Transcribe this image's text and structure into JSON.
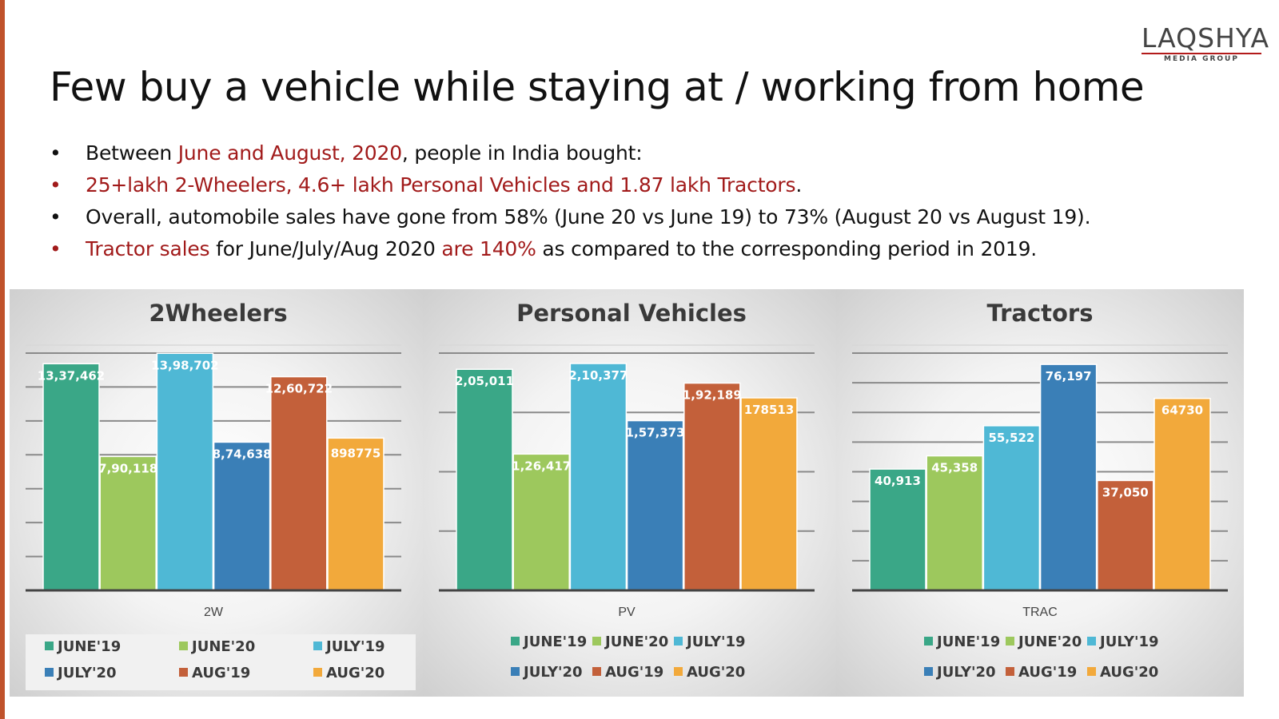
{
  "logo": {
    "name": "LAQSHYA",
    "tagline": "MEDIA GROUP"
  },
  "title": "Few buy a vehicle while staying at / working from home",
  "bullets": [
    {
      "parts": [
        {
          "text": "Between ",
          "color": "black"
        },
        {
          "text": "June and August, 2020",
          "color": "red"
        },
        {
          "text": ", people in India bought:",
          "color": "black"
        }
      ],
      "bullet_color": "black"
    },
    {
      "parts": [
        {
          "text": "25+lakh 2-Wheelers, 4.6+ lakh Personal Vehicles and 1.87 lakh Tractors",
          "color": "red"
        },
        {
          "text": ".",
          "color": "black"
        }
      ],
      "bullet_color": "red"
    },
    {
      "parts": [
        {
          "text": "Overall, automobile sales have gone from 58% (June 20 vs June 19) to 73% (August 20 vs August 19).",
          "color": "black"
        }
      ],
      "bullet_color": "black"
    },
    {
      "parts": [
        {
          "text": "Tractor sales",
          "color": "red"
        },
        {
          "text": " for June/July/Aug 2020 ",
          "color": "black"
        },
        {
          "text": "are 140%",
          "color": "red"
        },
        {
          "text": " as compared to the corresponding period in 2019.",
          "color": "black"
        }
      ],
      "bullet_color": "red"
    }
  ],
  "colors": {
    "red": "#a11a1a",
    "black": "#111111"
  },
  "chart_data": [
    {
      "type": "bar",
      "title": "2Wheelers",
      "categories": [
        "2W"
      ],
      "series": [
        {
          "name": "JUNE'19",
          "values": [
            1337462
          ],
          "label": "13,37,462",
          "color": "#3aa787"
        },
        {
          "name": "JUNE'20",
          "values": [
            790118
          ],
          "label": "7,90,118",
          "color": "#9dc85d"
        },
        {
          "name": "JULY'19",
          "values": [
            1398702
          ],
          "label": "13,98,702",
          "color": "#4fb8d5"
        },
        {
          "name": "JULY'20",
          "values": [
            874638
          ],
          "label": "8,74,638",
          "color": "#3a7fb7"
        },
        {
          "name": "AUG'19",
          "values": [
            1260722
          ],
          "label": "12,60,722",
          "color": "#c3603a"
        },
        {
          "name": "AUG'20",
          "values": [
            898775
          ],
          "label": "898775",
          "color": "#f2a93b"
        }
      ],
      "xlabel": "2W",
      "ylim": [
        0,
        1400000
      ],
      "legend": "bottom"
    },
    {
      "type": "bar",
      "title": "Personal Vehicles",
      "categories": [
        "PV"
      ],
      "series": [
        {
          "name": "JUNE'19",
          "values": [
            205011
          ],
          "label": "2,05,011",
          "color": "#3aa787"
        },
        {
          "name": "JUNE'20",
          "values": [
            126417
          ],
          "label": "1,26,417",
          "color": "#9dc85d"
        },
        {
          "name": "JULY'19",
          "values": [
            210377
          ],
          "label": "2,10,377",
          "color": "#4fb8d5"
        },
        {
          "name": "JULY'20",
          "values": [
            157373
          ],
          "label": "1,57,373",
          "color": "#3a7fb7"
        },
        {
          "name": "AUG'19",
          "values": [
            192189
          ],
          "label": "1,92,189",
          "color": "#c3603a"
        },
        {
          "name": "AUG'20",
          "values": [
            178513
          ],
          "label": "178513",
          "color": "#f2a93b"
        }
      ],
      "xlabel": "PV",
      "ylim": [
        0,
        220000
      ],
      "legend": "bottom"
    },
    {
      "type": "bar",
      "title": "Tractors",
      "categories": [
        "TRAC"
      ],
      "series": [
        {
          "name": "JUNE'19",
          "values": [
            40913
          ],
          "label": "40,913",
          "color": "#3aa787"
        },
        {
          "name": "JUNE'20",
          "values": [
            45358
          ],
          "label": "45,358",
          "color": "#9dc85d"
        },
        {
          "name": "JULY'19",
          "values": [
            55522
          ],
          "label": "55,522",
          "color": "#4fb8d5"
        },
        {
          "name": "JULY'20",
          "values": [
            76197
          ],
          "label": "76,197",
          "color": "#3a7fb7"
        },
        {
          "name": "AUG'19",
          "values": [
            37050
          ],
          "label": "37,050",
          "color": "#c3603a"
        },
        {
          "name": "AUG'20",
          "values": [
            64730
          ],
          "label": "64730",
          "color": "#f2a93b"
        }
      ],
      "xlabel": "TRAC",
      "ylim": [
        0,
        80000
      ],
      "legend": "bottom"
    }
  ]
}
